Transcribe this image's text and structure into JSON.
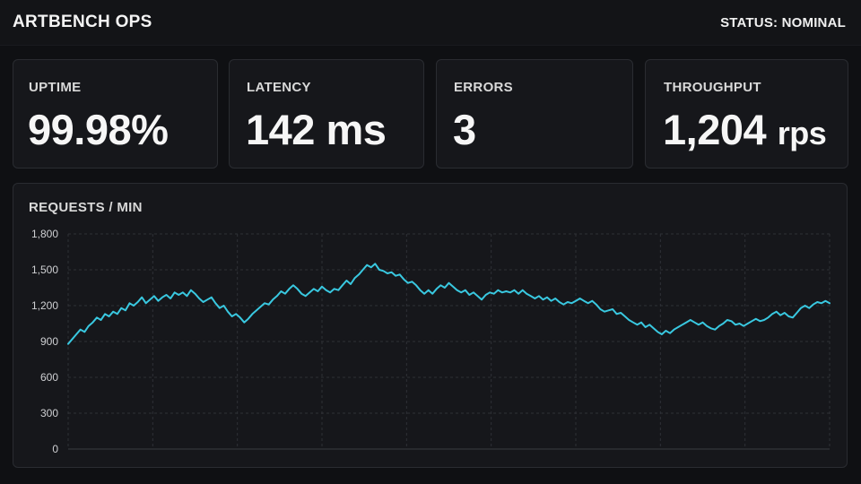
{
  "header": {
    "title": "ARTBENCH OPS",
    "status": "STATUS: NOMINAL"
  },
  "metrics": [
    {
      "label": "UPTIME",
      "value": "99.98%",
      "unit": ""
    },
    {
      "label": "LATENCY",
      "value": "142 ms",
      "unit": ""
    },
    {
      "label": "ERRORS",
      "value": "3",
      "unit": ""
    },
    {
      "label": "THROUGHPUT",
      "value": "1,204",
      "unit": "rps"
    }
  ],
  "colors": {
    "background": "#0f1013",
    "card": "#16171b",
    "line": "#39c8e0",
    "grid": "#2f3136"
  },
  "chart_data": {
    "type": "line",
    "title": "REQUESTS / MIN",
    "xlabel": "",
    "ylabel": "",
    "ylim": [
      0,
      1800
    ],
    "yticks": [
      0,
      300,
      600,
      900,
      1200,
      1500,
      1800
    ],
    "ytick_labels": [
      "0",
      "300",
      "600",
      "900",
      "1,200",
      "1,500",
      "1,800"
    ],
    "grid": true,
    "series": [
      {
        "values": [
          880,
          920,
          960,
          1000,
          980,
          1030,
          1060,
          1100,
          1080,
          1130,
          1110,
          1150,
          1130,
          1180,
          1160,
          1220,
          1200,
          1230,
          1270,
          1220,
          1250,
          1280,
          1240,
          1270,
          1290,
          1260,
          1310,
          1290,
          1310,
          1280,
          1330,
          1300,
          1260,
          1230,
          1250,
          1270,
          1220,
          1180,
          1200,
          1150,
          1110,
          1130,
          1100,
          1060,
          1090,
          1130,
          1160,
          1190,
          1220,
          1210,
          1250,
          1280,
          1320,
          1300,
          1340,
          1370,
          1340,
          1300,
          1280,
          1310,
          1340,
          1320,
          1360,
          1330,
          1310,
          1340,
          1330,
          1370,
          1410,
          1380,
          1430,
          1460,
          1500,
          1540,
          1520,
          1550,
          1500,
          1490,
          1470,
          1480,
          1450,
          1460,
          1420,
          1390,
          1400,
          1370,
          1330,
          1300,
          1330,
          1300,
          1340,
          1370,
          1350,
          1390,
          1360,
          1330,
          1310,
          1330,
          1290,
          1310,
          1280,
          1250,
          1290,
          1310,
          1300,
          1330,
          1310,
          1320,
          1310,
          1330,
          1300,
          1330,
          1300,
          1280,
          1260,
          1280,
          1250,
          1270,
          1240,
          1260,
          1230,
          1210,
          1230,
          1220,
          1240,
          1260,
          1240,
          1220,
          1240,
          1210,
          1170,
          1150,
          1160,
          1170,
          1130,
          1140,
          1110,
          1080,
          1060,
          1040,
          1060,
          1020,
          1040,
          1010,
          980,
          960,
          990,
          970,
          1000,
          1020,
          1040,
          1060,
          1080,
          1060,
          1040,
          1060,
          1030,
          1010,
          1000,
          1030,
          1050,
          1080,
          1070,
          1040,
          1050,
          1030,
          1050,
          1070,
          1090,
          1070,
          1080,
          1100,
          1130,
          1150,
          1120,
          1140,
          1110,
          1100,
          1140,
          1180,
          1200,
          1180,
          1210,
          1230,
          1220,
          1240,
          1220
        ]
      }
    ]
  }
}
